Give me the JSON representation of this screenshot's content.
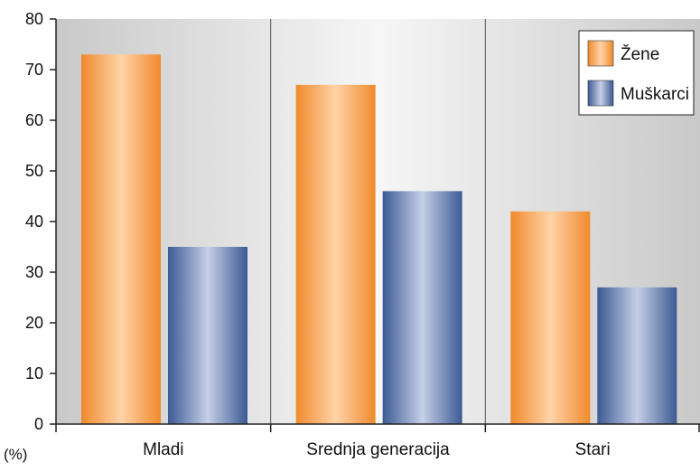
{
  "chart_data": {
    "type": "bar",
    "categories": [
      "Mladi",
      "Srednja generacija",
      "Stari"
    ],
    "series": [
      {
        "name": "Žene",
        "values": [
          73,
          67,
          42
        ]
      },
      {
        "name": "Muškarci",
        "values": [
          35,
          46,
          27
        ]
      }
    ],
    "ylim": [
      0,
      80
    ],
    "yticks": [
      "0",
      "10",
      "20",
      "30",
      "40",
      "50",
      "60",
      "70",
      "80"
    ],
    "yunit": "(%)",
    "legend_position": "top-right",
    "grid": "vertical-category-separators",
    "colors": {
      "series_1_edge": "#f08a2c",
      "series_1_center": "#ffd3a8",
      "series_2_edge": "#3c5a94",
      "series_2_center": "#c6cfe6",
      "background_edge": "#c9c9c9",
      "background_center": "#f6f6f6"
    }
  }
}
